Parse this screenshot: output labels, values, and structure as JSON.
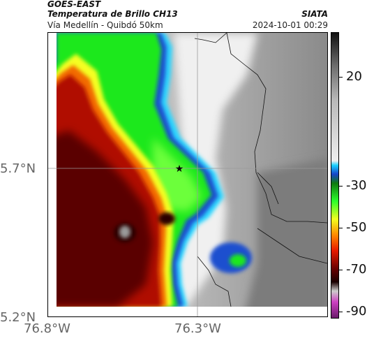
{
  "header": {
    "satellite": "GOES-EAST",
    "title": "Temperatura de Brillo CH13",
    "subtitle": "Vía Medellín - Quibdó 50km",
    "brand": "SIATA",
    "timestamp": "2024-10-01 00:29"
  },
  "axes": {
    "lat_labels": [
      "5.7°N",
      "5.2°N"
    ],
    "lon_labels": [
      "76.8°W",
      "76.3°W"
    ]
  },
  "colorbar": {
    "labels": [
      "20",
      "-30",
      "-50",
      "-70",
      "-90"
    ],
    "stops": [
      {
        "value": 35,
        "color": "#111111"
      },
      {
        "value": 20,
        "color": "#6e6e6e"
      },
      {
        "value": 5,
        "color": "#b8b8b8"
      },
      {
        "value": -22,
        "color": "#eeeeee"
      },
      {
        "value": -24,
        "color": "#19d1ff"
      },
      {
        "value": -28,
        "color": "#1844c9"
      },
      {
        "value": -32,
        "color": "#0f7a0f"
      },
      {
        "value": -40,
        "color": "#2bff2b"
      },
      {
        "value": -48,
        "color": "#f2ff1f"
      },
      {
        "value": -55,
        "color": "#ff8a00"
      },
      {
        "value": -62,
        "color": "#e81a00"
      },
      {
        "value": -70,
        "color": "#6a0000"
      },
      {
        "value": -76,
        "color": "#1a0000"
      },
      {
        "value": -80,
        "color": "#cccccc"
      },
      {
        "value": -85,
        "color": "#cc3fc1"
      },
      {
        "value": -92,
        "color": "#6b1b6b"
      }
    ]
  },
  "map": {
    "colors": {
      "red_deep": "#5a0000",
      "red": "#b00a00",
      "orange": "#f26a00",
      "yellow": "#f5ff22",
      "green": "#1fe81f",
      "green_light": "#6cff3a",
      "blue": "#1f4fcf",
      "cyan": "#2dd7ff",
      "gray": "#8a8a8a",
      "gray_light": "#d9d9d9"
    },
    "station_icon": "star-icon"
  }
}
